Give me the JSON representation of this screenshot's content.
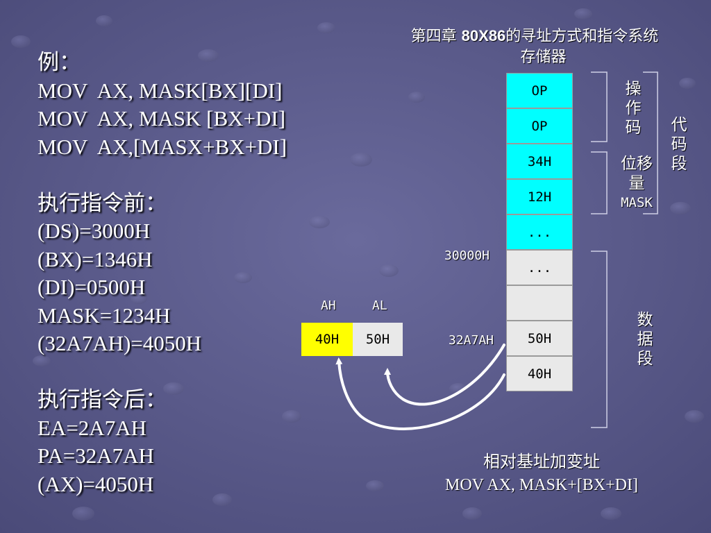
{
  "header": {
    "chapter_prefix": "第四章  ",
    "chapter_bold": "80X86",
    "chapter_rest": "的寻址方式和指令系统"
  },
  "example": {
    "lines": [
      "例：",
      "MOV  AX, MASK[BX][DI]",
      "MOV  AX, MASK [BX+DI]",
      "MOV  AX,[MASX+BX+DI]",
      "",
      "执行指令前：",
      "(DS)=3000H",
      "(BX)=1346H",
      "(DI)=0500H",
      "MASK=1234H",
      "(32A7AH)=4050H",
      "",
      "执行指令后：",
      "EA=2A7AH",
      "PA=32A7AH",
      "(AX)=4050H"
    ]
  },
  "memory": {
    "title": "存储器",
    "cells": [
      {
        "text": "OP",
        "color": "#00ffff"
      },
      {
        "text": "OP",
        "color": "#00ffff"
      },
      {
        "text": "34H",
        "color": "#00ffff"
      },
      {
        "text": "12H",
        "color": "#00ffff"
      },
      {
        "text": "...",
        "color": "#00ffff"
      },
      {
        "text": "...",
        "color": "#e9e9e9"
      },
      {
        "text": "",
        "color": "#e9e9e9"
      },
      {
        "text": "50H",
        "color": "#e9e9e9"
      },
      {
        "text": "40H",
        "color": "#e9e9e9"
      }
    ],
    "addr_30000": "30000H",
    "addr_32a7a": "32A7AH"
  },
  "brackets": {
    "opcode": [
      "操",
      "作",
      "码"
    ],
    "displacement": [
      "位移",
      "量",
      "MASK"
    ],
    "code_segment": [
      "代",
      "码",
      "段"
    ],
    "data_segment": [
      "数",
      "据",
      "段"
    ]
  },
  "register": {
    "ah_label": "AH",
    "al_label": "AL",
    "ah_value": "40H",
    "al_value": "50H",
    "ah_color": "#ffff00",
    "al_color": "#e9e9e9"
  },
  "caption": {
    "line1": "相对基址加变址",
    "line2": "MOV  AX, MASK+[BX+DI]"
  }
}
